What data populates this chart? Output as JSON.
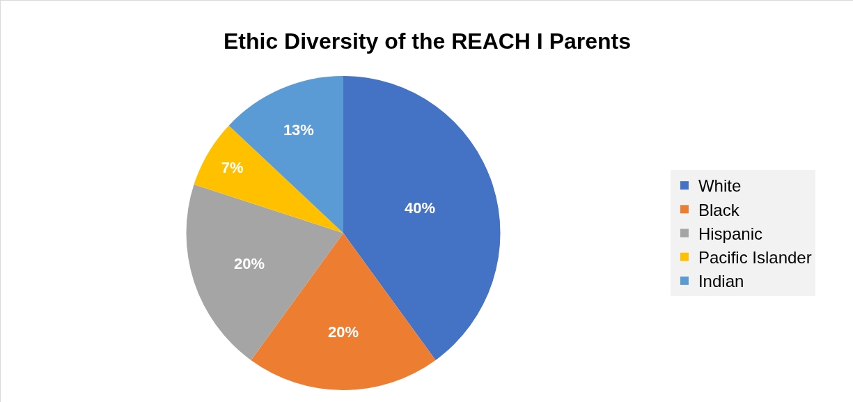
{
  "chart_data": {
    "type": "pie",
    "title": "Ethic Diversity of the REACH I Parents",
    "categories": [
      "White",
      "Black",
      "Hispanic",
      "Pacific Islander",
      "Indian"
    ],
    "values": [
      40,
      20,
      20,
      7,
      13
    ],
    "colors": [
      "#4472c4",
      "#ed7d31",
      "#a5a5a5",
      "#ffc000",
      "#5b9bd5"
    ],
    "value_labels": [
      "40%",
      "20%",
      "20%",
      "7%",
      "13%"
    ],
    "legend": "right"
  }
}
